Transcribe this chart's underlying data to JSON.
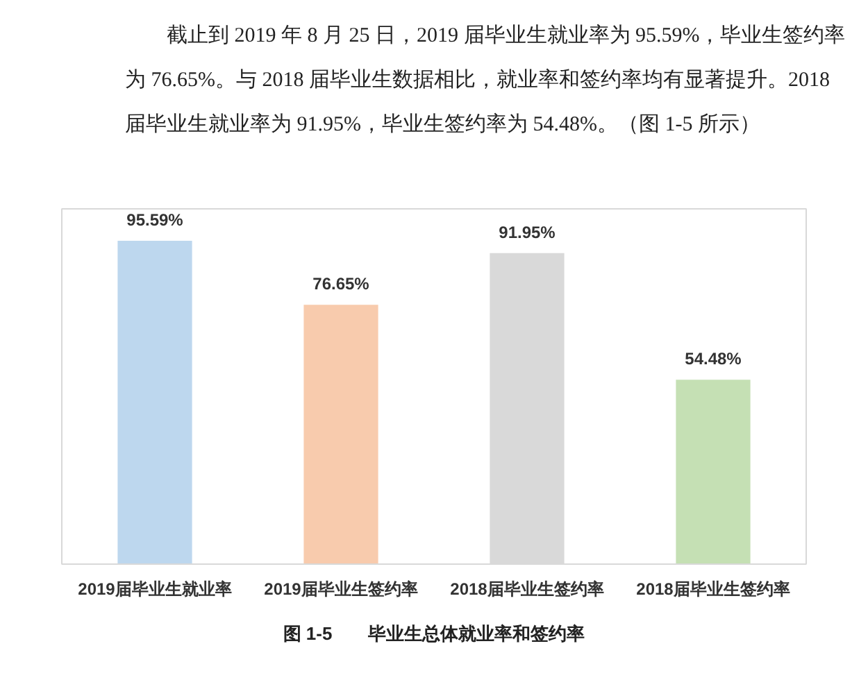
{
  "chart_data": {
    "type": "bar",
    "title": "图 1-5　　毕业生总体就业率和签约率",
    "annotations": [
      "截止到 2019 年 8 月 25 日，2019 届毕业生就业率为 95.59%，毕业生签约率",
      "为 76.65%。与 2018 届毕业生数据相比，就业率和签约率均有显著提升。2018",
      "届毕业生就业率为 91.95%，毕业生签约率为 54.48%。（图 1-5 所示）"
    ],
    "categories": [
      "2019届毕业生就业率",
      "2019届毕业生签约率",
      "2018届毕业生签约率",
      "2018届毕业生签约率"
    ],
    "values": [
      95.59,
      76.65,
      91.95,
      54.48
    ],
    "colors": [
      "#bdd7ee",
      "#f8cbad",
      "#d9d9d9",
      "#c5e0b4"
    ],
    "value_labels": [
      "95.59%",
      "76.65%",
      "91.95%",
      "54.48%"
    ],
    "ylim": [
      0,
      105
    ],
    "tick_labels": "x",
    "grid": false
  }
}
